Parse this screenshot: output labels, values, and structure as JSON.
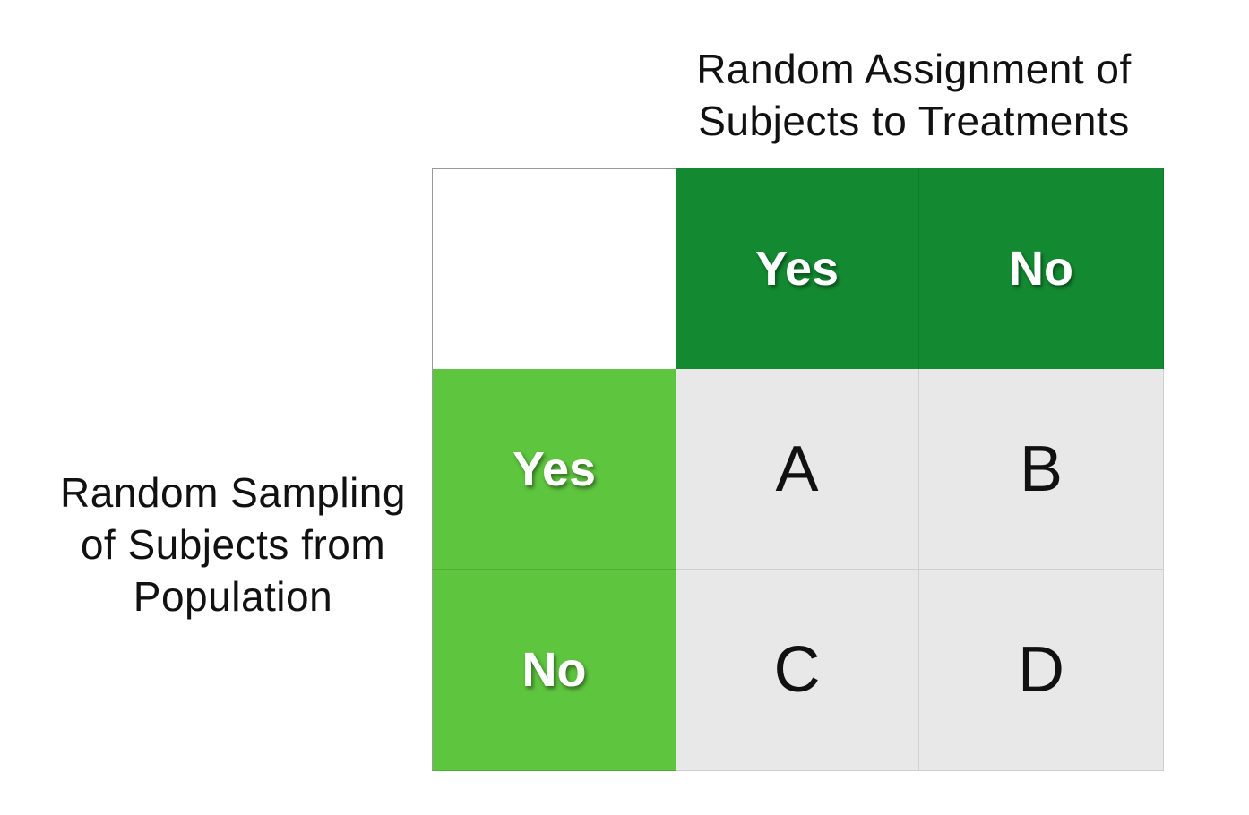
{
  "column_title": {
    "line1": "Random Assignment of",
    "line2": "Subjects to Treatments"
  },
  "row_title": {
    "line1": "Random Sampling",
    "line2": "of Subjects from",
    "line3": "Population"
  },
  "column_headers": [
    "Yes",
    "No"
  ],
  "row_headers": [
    "Yes",
    "No"
  ],
  "cells": [
    [
      "A",
      "B"
    ],
    [
      "C",
      "D"
    ]
  ],
  "colors": {
    "column_header_bg": "#138a32",
    "row_header_bg": "#5ec53f",
    "cell_bg": "#e8e8e8"
  }
}
